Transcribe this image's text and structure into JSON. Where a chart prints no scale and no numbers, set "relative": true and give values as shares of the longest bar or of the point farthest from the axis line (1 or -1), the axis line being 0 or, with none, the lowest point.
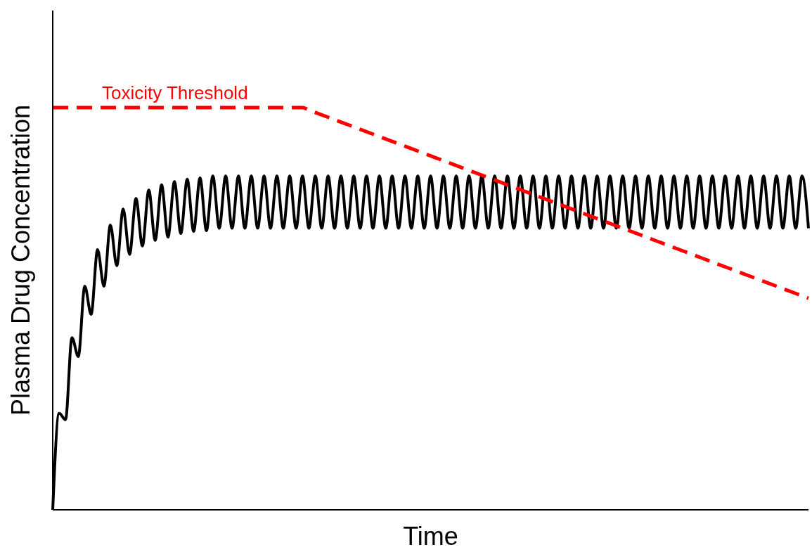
{
  "chart_data": {
    "type": "line",
    "relative": true,
    "xlabel": "Time",
    "ylabel": "Plasma Drug Concentration",
    "marker": "none",
    "legend": false,
    "grid": false,
    "categories": [
      null,
      null,
      null,
      null,
      null,
      null,
      null,
      null,
      null,
      null,
      null,
      null,
      null,
      null,
      null,
      null,
      null,
      null,
      null,
      null,
      null,
      null,
      null,
      null,
      null,
      null,
      null,
      null,
      null,
      null,
      null,
      null,
      null,
      null,
      null,
      null,
      null,
      null,
      null,
      null,
      null,
      null,
      null,
      null,
      null,
      null,
      null,
      null,
      null,
      null,
      null,
      null,
      null,
      null,
      null,
      null,
      null,
      null,
      null,
      null,
      null,
      null,
      null,
      null,
      null,
      null,
      null,
      null,
      null,
      null,
      null,
      null,
      null,
      null,
      null,
      null,
      null,
      null,
      null,
      null,
      null,
      null,
      null,
      null,
      null,
      null,
      null,
      null,
      null,
      null,
      null,
      null,
      null,
      null,
      null,
      null,
      null,
      null,
      null,
      null,
      null,
      null,
      null,
      null,
      null,
      null,
      null,
      null,
      null,
      null,
      null,
      null,
      null,
      null,
      null,
      null,
      null,
      null,
      null
    ],
    "series": [
      {
        "color": "#000000",
        "line_style": "solid",
        "values": [
          0,
          0.24,
          0.224,
          0.428,
          0.381,
          0.556,
          0.486,
          0.647,
          0.556,
          0.708,
          0.607,
          0.748,
          0.635,
          0.774,
          0.656,
          0.795,
          0.67,
          0.808,
          0.678,
          0.816,
          0.687,
          0.822,
          0.692,
          0.825,
          0.694,
          0.83,
          0.7,
          0.83,
          0.7,
          0.83,
          0.7,
          0.83,
          0.7,
          0.83,
          0.7,
          0.83,
          0.7,
          0.83,
          0.7,
          0.83,
          0.7,
          0.83,
          0.7,
          0.83,
          0.7,
          0.83,
          0.7,
          0.83,
          0.7,
          0.83,
          0.7,
          0.83,
          0.7,
          0.83,
          0.7,
          0.83,
          0.7,
          0.83,
          0.7,
          0.83,
          0.7,
          0.83,
          0.7,
          0.83,
          0.7,
          0.83,
          0.7,
          0.83,
          0.7,
          0.83,
          0.7,
          0.83,
          0.7,
          0.83,
          0.7,
          0.83,
          0.7,
          0.83,
          0.7,
          0.83,
          0.7,
          0.83,
          0.7,
          0.83,
          0.7,
          0.83,
          0.7,
          0.83,
          0.7,
          0.83,
          0.7,
          0.83,
          0.7,
          0.83,
          0.7,
          0.83,
          0.7,
          0.83,
          0.7,
          0.83,
          0.7,
          0.83,
          0.7,
          0.83,
          0.7,
          0.83,
          0.7,
          0.83,
          0.7,
          0.83,
          0.7,
          0.83,
          0.7,
          0.83,
          0.7,
          0.83,
          0.7,
          0.83,
          0.7
        ]
      },
      {
        "name": "Toxicity Threshold",
        "color": "#ff0000",
        "line_style": "dashed",
        "values": [
          1,
          1,
          1,
          1,
          1,
          1,
          1,
          1,
          1,
          1,
          1,
          1,
          1,
          1,
          1,
          1,
          1,
          1,
          1,
          1,
          1,
          1,
          1,
          1,
          1,
          1,
          1,
          1,
          1,
          1,
          1,
          1,
          1,
          1,
          1,
          1,
          1,
          1,
          1,
          1,
          0.994,
          0.988,
          0.982,
          0.976,
          0.97,
          0.964,
          0.958,
          0.952,
          0.946,
          0.94,
          0.934,
          0.928,
          0.922,
          0.916,
          0.91,
          0.904,
          0.898,
          0.892,
          0.886,
          0.88,
          0.874,
          0.868,
          0.862,
          0.856,
          0.85,
          0.844,
          0.838,
          0.832,
          0.826,
          0.82,
          0.814,
          0.808,
          0.802,
          0.796,
          0.79,
          0.784,
          0.778,
          0.772,
          0.766,
          0.76,
          0.754,
          0.748,
          0.742,
          0.736,
          0.73,
          0.724,
          0.718,
          0.712,
          0.706,
          0.7,
          0.694,
          0.688,
          0.682,
          0.676,
          0.67,
          0.664,
          0.658,
          0.652,
          0.646,
          0.64,
          0.634,
          0.628,
          0.622,
          0.616,
          0.61,
          0.604,
          0.598,
          0.592,
          0.586,
          0.58,
          0.574,
          0.568,
          0.562,
          0.556,
          0.55,
          0.544,
          0.538,
          0.532,
          0.526
        ]
      }
    ]
  }
}
